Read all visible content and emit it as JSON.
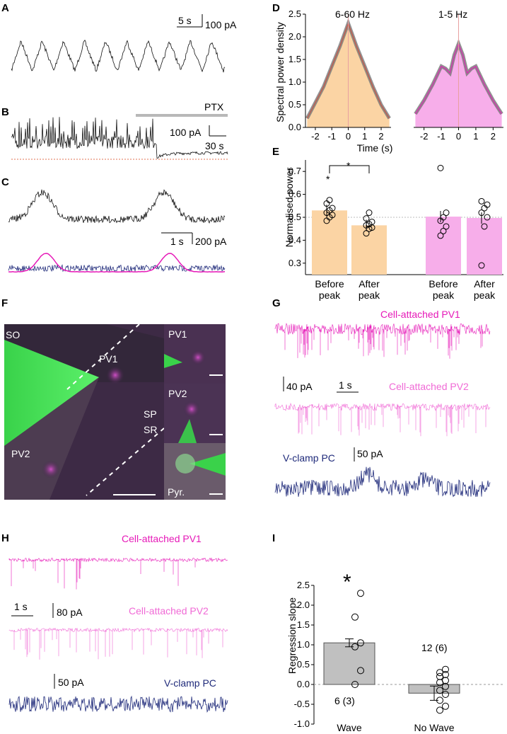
{
  "panels": {
    "A": {
      "label": "A",
      "scale_time": "5 s",
      "scale_amp": "100 pA"
    },
    "B": {
      "label": "B",
      "drug": "PTX",
      "scale_amp": "100 pA",
      "scale_time": "30 s"
    },
    "C": {
      "label": "C",
      "scale_time": "1 s",
      "scale_amp": "200 pA"
    },
    "D": {
      "label": "D",
      "band_fast": "6-60 Hz",
      "band_slow": "1-5 Hz",
      "ylabel": "Spectral power density",
      "xlabel": "Time (s)"
    },
    "E": {
      "label": "E",
      "ylabel": "Normalised power",
      "star_group": "*",
      "star_compare": "*"
    },
    "F": {
      "label": "F",
      "SO": "SO",
      "SP": "SP",
      "SR": "SR",
      "PV1": "PV1",
      "PV2": "PV2",
      "inset_pv1": "PV1",
      "inset_pv2": "PV2",
      "inset_pyr": "Pyr."
    },
    "G": {
      "label": "G",
      "trace1": "Cell-attached PV1",
      "trace2": "Cell-attached PV2",
      "trace3": "V-clamp PC",
      "scale_amp": "40 pA",
      "scale_time": "1 s",
      "scale_amp2": "50 pA"
    },
    "H": {
      "label": "H",
      "trace1": "Cell-attached PV1",
      "trace2": "Cell-attached PV2",
      "trace3": "V-clamp PC",
      "scale_time": "1 s",
      "scale_amp": "80 pA",
      "scale_amp2": "50 pA"
    },
    "I": {
      "label": "I",
      "ylabel": "Regression slope",
      "star": "*",
      "n_wave": "6 (3)",
      "n_nowave": "12 (6)"
    }
  },
  "colors": {
    "orange": "#fbd4a4",
    "pink": "#f7aeea",
    "magenta": "#e619b8",
    "lightmagenta": "#f06ad6",
    "navy": "#1f2a7a",
    "grey": "#c0c0c0",
    "red": "#d04a3a"
  },
  "chart_data": [
    {
      "type": "area",
      "panel": "D-left",
      "title": "6-60 Hz",
      "x": [
        -2.5,
        -2,
        -1.5,
        -1,
        -0.5,
        0,
        0.5,
        1,
        1.5,
        2,
        2.5
      ],
      "series": [
        {
          "name": "power",
          "values": [
            0.2,
            0.55,
            0.9,
            1.35,
            1.8,
            2.3,
            1.8,
            1.35,
            0.9,
            0.5,
            0.2
          ]
        }
      ],
      "xlabel": "Time (s)",
      "ylabel": "Spectral power density",
      "xlim": [
        -2.6,
        2.6
      ],
      "ylim": [
        0,
        2.5
      ],
      "xticks": [
        "-2",
        "-1",
        "0",
        "1",
        "2"
      ],
      "yticks": [
        "0.0",
        "0.5",
        "1.0",
        "1.5",
        "2.0",
        "2.5"
      ]
    },
    {
      "type": "area",
      "panel": "D-right",
      "title": "1-5 Hz",
      "x": [
        -2.5,
        -2,
        -1.5,
        -1,
        -0.75,
        -0.5,
        -0.25,
        0,
        0.25,
        0.5,
        0.75,
        1,
        1.5,
        2,
        2.5
      ],
      "series": [
        {
          "name": "power",
          "values": [
            0.3,
            0.6,
            0.95,
            1.35,
            1.3,
            1.2,
            1.6,
            1.85,
            1.6,
            1.2,
            1.3,
            1.35,
            0.95,
            0.6,
            0.3
          ]
        }
      ],
      "xlabel": "Time (s)",
      "xlim": [
        -2.6,
        2.6
      ],
      "ylim": [
        0,
        2.5
      ],
      "xticks": [
        "-2",
        "-1",
        "0",
        "1",
        "2"
      ]
    },
    {
      "type": "bar",
      "panel": "E",
      "ylabel": "Normalised power",
      "ylim": [
        0.25,
        0.75
      ],
      "yticks": [
        "0.3",
        "0.4",
        "0.5",
        "0.6",
        "0.7"
      ],
      "groups": [
        {
          "name": "6-60 Hz",
          "categories": [
            "Before peak",
            "After peak"
          ],
          "values": [
            0.53,
            0.465
          ],
          "points": [
            [
              0.485,
              0.5,
              0.51,
              0.52,
              0.53,
              0.54,
              0.56,
              0.575
            ],
            [
              0.43,
              0.45,
              0.455,
              0.465,
              0.47,
              0.48,
              0.495,
              0.52
            ]
          ]
        },
        {
          "name": "1-5 Hz",
          "categories": [
            "Before peak",
            "After peak"
          ],
          "values": [
            0.503,
            0.497
          ],
          "points": [
            [
              0.42,
              0.44,
              0.46,
              0.485,
              0.5,
              0.52,
              0.715
            ],
            [
              0.29,
              0.46,
              0.5,
              0.52,
              0.54,
              0.555,
              0.57
            ]
          ]
        }
      ]
    },
    {
      "type": "bar",
      "panel": "I",
      "ylabel": "Regression slope",
      "categories": [
        "Wave",
        "No Wave"
      ],
      "values": [
        1.05,
        -0.22
      ],
      "ylim": [
        -1.0,
        2.5
      ],
      "yticks": [
        "-1.0",
        "-0.5",
        "0.0",
        "0.5",
        "1.0",
        "1.5",
        "2.0",
        "2.5"
      ],
      "points": [
        [
          0.0,
          0.35,
          0.95,
          1.05,
          1.7,
          2.3
        ],
        [
          -0.65,
          -0.55,
          -0.4,
          -0.25,
          -0.15,
          -0.05,
          0.05,
          0.1,
          0.2,
          0.25,
          0.3,
          0.38
        ]
      ]
    }
  ]
}
